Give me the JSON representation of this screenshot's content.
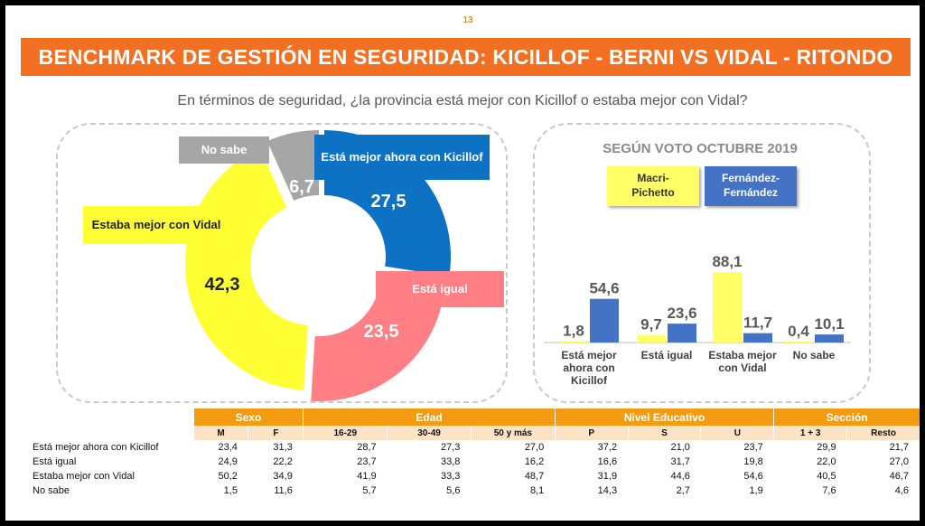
{
  "page_number": "13",
  "title": "BENCHMARK DE GESTIÓN EN SEGURIDAD: KICILLOF - BERNI VS VIDAL - RITONDO",
  "question": "En términos de seguridad, ¿la provincia está mejor con Kicillof o estaba mejor con Vidal?",
  "colors": {
    "kicillof": "#0E72C4",
    "igual": "#FF7F85",
    "vidal": "#FFFF33",
    "no_sabe": "#A6A6A6",
    "macri": "#FFFF66",
    "fernandez": "#4472C4",
    "accent": "#F36F21"
  },
  "chart_data": [
    {
      "type": "pie",
      "categories": [
        "Está mejor ahora con Kicillof",
        "Está igual",
        "Estaba mejor con Vidal",
        "No sabe"
      ],
      "labels": [
        "Está mejor ahora con Kicillof",
        "Está igual",
        "Estaba mejor con Vidal",
        "No sabe"
      ],
      "value_labels": [
        "27,5",
        "23,5",
        "42,3",
        "6,7"
      ],
      "values": [
        27.5,
        23.5,
        42.3,
        6.7
      ]
    },
    {
      "type": "bar",
      "title": "SEGÚN VOTO OCTUBRE 2019",
      "categories": [
        "Está mejor ahora con Kicillof",
        "Está igual",
        "Estaba mejor con Vidal",
        "No sabe"
      ],
      "category_lines": [
        [
          "Está mejor",
          "ahora con",
          "Kicillof"
        ],
        [
          "Está igual"
        ],
        [
          "Estaba mejor",
          "con Vidal"
        ],
        [
          "No sabe"
        ]
      ],
      "series": [
        {
          "name": "Macri-Pichetto",
          "values": [
            1.8,
            9.7,
            88.1,
            0.4
          ],
          "labels": [
            "1,8",
            "9,7",
            "88,1",
            "0,4"
          ]
        },
        {
          "name": "Fernández-Fernández",
          "values": [
            54.6,
            23.6,
            11.7,
            10.1
          ],
          "labels": [
            "54,6",
            "23,6",
            "11,7",
            "10,1"
          ]
        }
      ],
      "legend_lines": [
        [
          "Macri-",
          "Pichetto"
        ],
        [
          "Fernández-",
          "Fernández"
        ]
      ],
      "legend": "top",
      "ylim": [
        0,
        90
      ]
    },
    {
      "type": "table",
      "groups": [
        {
          "label": "Sexo",
          "span": 2
        },
        {
          "label": "Edad",
          "span": 3
        },
        {
          "label": "Nivel Educativo",
          "span": 3
        },
        {
          "label": "Sección",
          "span": 2
        }
      ],
      "columns": [
        "M",
        "F",
        "16-29",
        "30-49",
        "50 y más",
        "P",
        "S",
        "U",
        "1 + 3",
        "Resto"
      ],
      "rows": [
        {
          "label": "Está mejor ahora con Kicillof",
          "values": [
            "23,4",
            "31,3",
            "28,7",
            "27,3",
            "27,0",
            "37,2",
            "21,0",
            "23,7",
            "29,9",
            "21,7"
          ]
        },
        {
          "label": "Está igual",
          "values": [
            "24,9",
            "22,2",
            "23,7",
            "33,8",
            "16,2",
            "16,6",
            "31,7",
            "19,8",
            "22,0",
            "27,0"
          ]
        },
        {
          "label": "Estaba mejor con Vidal",
          "values": [
            "50,2",
            "34,9",
            "41,9",
            "33,3",
            "48,7",
            "31,9",
            "44,6",
            "54,6",
            "40,5",
            "46,7"
          ]
        },
        {
          "label": "No sabe",
          "values": [
            "1,5",
            "11,6",
            "5,7",
            "5,6",
            "8,1",
            "14,3",
            "2,7",
            "1,9",
            "7,6",
            "4,6"
          ]
        }
      ]
    }
  ]
}
